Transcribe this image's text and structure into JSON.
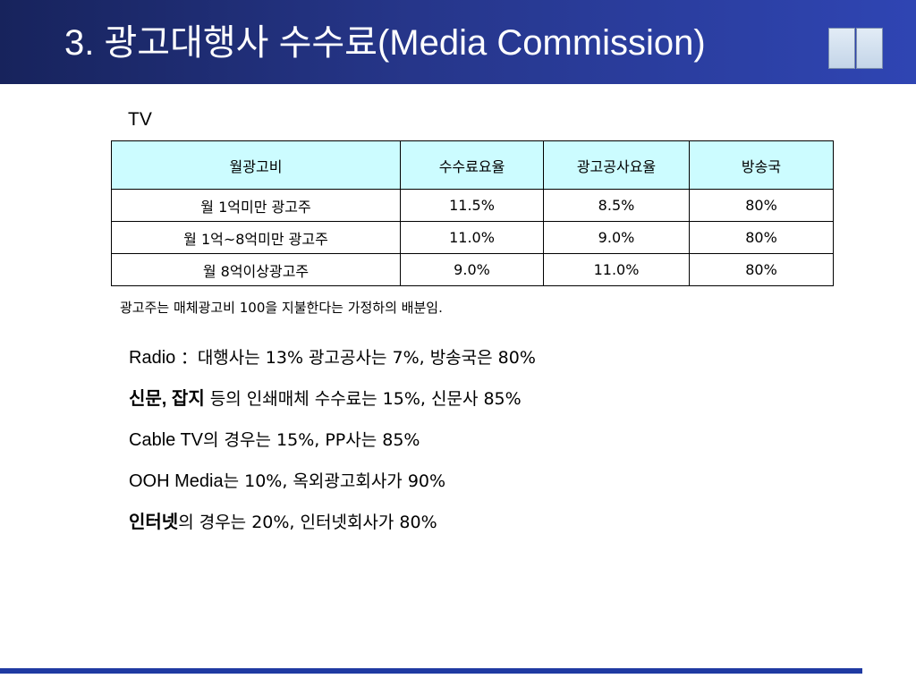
{
  "title": "3. 광고대행사 수수료(Media Commission)",
  "section_label": "TV",
  "table": {
    "headers": [
      "월광고비",
      "수수료요율",
      "광고공사요율",
      "방송국"
    ],
    "rows": [
      [
        "월 1억미만 광고주",
        "11.5%",
        "8.5%",
        "80%"
      ],
      [
        "월 1억~8억미만 광고주",
        "11.0%",
        "9.0%",
        "80%"
      ],
      [
        "월 8억이상광고주",
        "9.0%",
        "11.0%",
        "80%"
      ]
    ],
    "header_color": "#ccfcff"
  },
  "footnote": "광고주는 매체광고비 100을 지불한다는 가정하의 배분임.",
  "bullets": [
    {
      "lead": "Radio ",
      "text": "：대행사는 13% 광고공사는 7%, 방송국은 80%"
    },
    {
      "lead": "신문, 잡지",
      "text": " 등의 인쇄매체 수수료는 15%, 신문사 85%"
    },
    {
      "lead": "Cable TV",
      "text": "의 경우는 15%, PP사는 85%"
    },
    {
      "lead": "OOH Media",
      "text": "는 10%, 옥외광고회사가 90%"
    },
    {
      "lead": "인터넷",
      "text": "의 경우는 20%, 인터넷회사가 80%"
    }
  ],
  "colors": {
    "title_bar": "#26368a",
    "footer_line": "#1f3aa2"
  }
}
